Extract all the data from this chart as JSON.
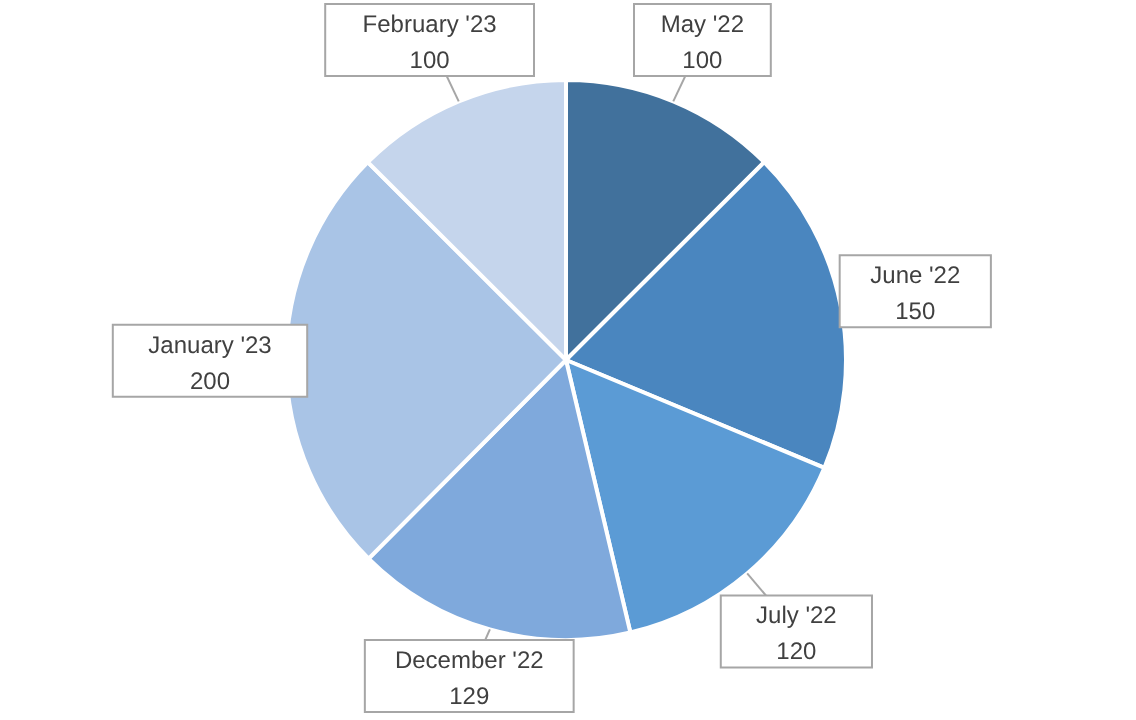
{
  "chart_data": {
    "type": "pie",
    "categories": [
      "May '22",
      "June '22",
      "July '22",
      "December '22",
      "January '23",
      "February '23"
    ],
    "values": [
      100,
      150,
      120,
      129,
      200,
      100
    ],
    "colors": [
      "#41719c",
      "#4a86bf",
      "#5b9bd5",
      "#7fa9dc",
      "#a9c4e6",
      "#c5d5ec"
    ],
    "data_labels": true
  }
}
